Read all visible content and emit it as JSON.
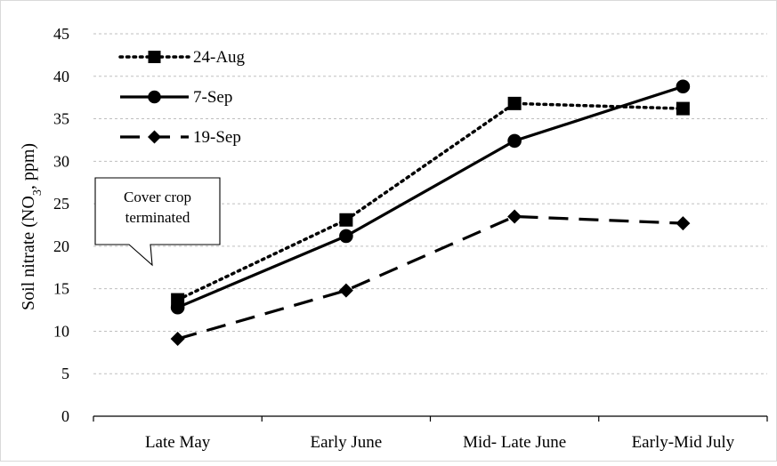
{
  "chart_data": {
    "type": "line",
    "title": "",
    "xlabel": "",
    "ylabel": "Soil nitrate (NO3, ppm)",
    "ylabel_parts": {
      "before": "Soil nitrate (NO",
      "sub": "3",
      "after": ", ppm)"
    },
    "categories": [
      "Late May",
      "Early June",
      "Mid- Late June",
      "Early-Mid July"
    ],
    "ylim": [
      0,
      45
    ],
    "yticks": [
      0,
      5,
      10,
      15,
      20,
      25,
      30,
      35,
      40,
      45
    ],
    "grid": true,
    "legend_position": "top-left",
    "series": [
      {
        "name": "24-Aug",
        "values": [
          13.7,
          23.1,
          36.8,
          36.2
        ],
        "line_style": "dotted",
        "marker": "square",
        "color": "#000000"
      },
      {
        "name": "7-Sep",
        "values": [
          12.8,
          21.2,
          32.4,
          38.8
        ],
        "line_style": "solid",
        "marker": "circle",
        "color": "#000000"
      },
      {
        "name": "19-Sep",
        "values": [
          9.1,
          14.8,
          23.5,
          22.7
        ],
        "line_style": "dashed",
        "marker": "diamond",
        "color": "#000000"
      }
    ],
    "annotation": {
      "lines": [
        "Cover crop",
        "terminated"
      ]
    }
  }
}
